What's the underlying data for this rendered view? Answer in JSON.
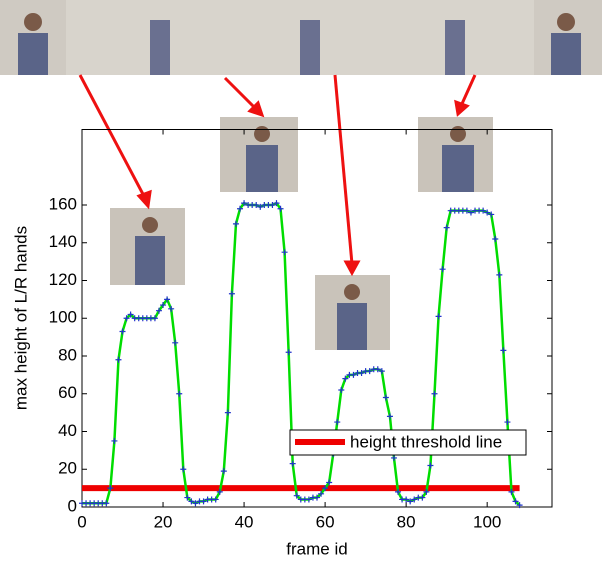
{
  "chart_data": {
    "type": "line",
    "xlabel": "frame id",
    "ylabel": "max height of L/R hands",
    "x": [
      0,
      1,
      2,
      3,
      4,
      5,
      6,
      7,
      8,
      9,
      10,
      11,
      12,
      13,
      14,
      15,
      16,
      17,
      18,
      19,
      20,
      21,
      22,
      23,
      24,
      25,
      26,
      27,
      28,
      29,
      30,
      31,
      32,
      33,
      34,
      35,
      36,
      37,
      38,
      39,
      40,
      41,
      42,
      43,
      44,
      45,
      46,
      47,
      48,
      49,
      50,
      51,
      52,
      53,
      54,
      55,
      56,
      57,
      58,
      59,
      60,
      61,
      62,
      63,
      64,
      65,
      66,
      67,
      68,
      69,
      70,
      71,
      72,
      73,
      74,
      75,
      76,
      77,
      78,
      79,
      80,
      81,
      82,
      83,
      84,
      85,
      86,
      87,
      88,
      89,
      90,
      91,
      92,
      93,
      94,
      95,
      96,
      97,
      98,
      99,
      100,
      101,
      102,
      103,
      104,
      105,
      106,
      107,
      108
    ],
    "series": [
      {
        "name": "max height",
        "color": "#00dd00",
        "marker_color": "#2233cc",
        "values": [
          2,
          2,
          2,
          2,
          2,
          2,
          2,
          10,
          35,
          78,
          93,
          100,
          102,
          100,
          100,
          100,
          100,
          100,
          100,
          104,
          107,
          110,
          105,
          87,
          60,
          20,
          5,
          3,
          2,
          3,
          3,
          4,
          4,
          4,
          8,
          19,
          50,
          113,
          150,
          158,
          161,
          160,
          160,
          160,
          159,
          160,
          160,
          160,
          161,
          158,
          135,
          82,
          23,
          6,
          4,
          4,
          4,
          5,
          5,
          7,
          10,
          13,
          28,
          45,
          62,
          68,
          70,
          70,
          71,
          71,
          72,
          72,
          73,
          73,
          72,
          58,
          48,
          26,
          8,
          4,
          4,
          3,
          4,
          5,
          5,
          8,
          22,
          60,
          101,
          126,
          148,
          157,
          157,
          157,
          157,
          157,
          156,
          157,
          157,
          157,
          156,
          155,
          142,
          123,
          83,
          45,
          8,
          3,
          1
        ]
      }
    ],
    "threshold": {
      "name": "height threshold line",
      "color": "#ee0000",
      "value": 10,
      "x": [
        0,
        108
      ]
    },
    "xlim": [
      0,
      116
    ],
    "xticks": [
      0,
      20,
      40,
      60,
      80,
      100
    ],
    "ylim": [
      0,
      200
    ],
    "yticks": [
      0,
      20,
      40,
      60,
      80,
      100,
      120,
      140,
      160
    ]
  }
}
